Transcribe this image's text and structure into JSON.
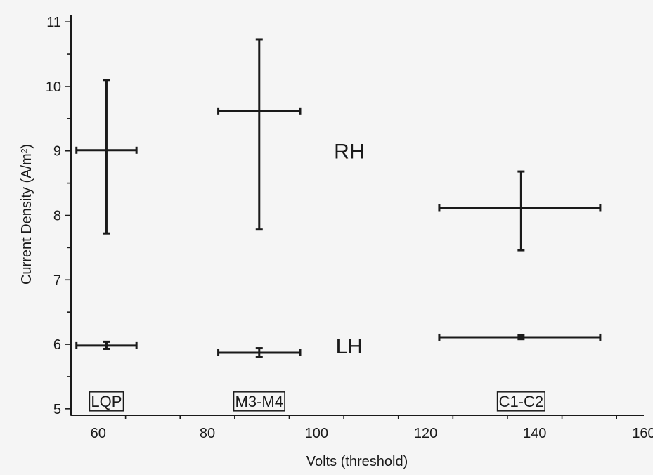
{
  "chart_data": {
    "type": "scatter",
    "xlabel": "Volts (threshold)",
    "ylabel": "Current Density (A/m²)",
    "xlim": [
      55,
      160
    ],
    "ylim": [
      4.9,
      11.1
    ],
    "xticks": [
      60,
      80,
      100,
      120,
      140,
      160
    ],
    "yticks": [
      5,
      6,
      7,
      8,
      9,
      10,
      11
    ],
    "x_minor_step": 10,
    "y_minor_step": 0.5,
    "grid": false,
    "colors": {
      "marks": "#1a1a1a",
      "background": "#f5f5f5"
    },
    "series": [
      {
        "points": [
          {
            "x": 61.5,
            "y": 9.01,
            "xerr_low": 56,
            "xerr_high": 67,
            "yerr_low": 7.72,
            "yerr_high": 10.1
          },
          {
            "x": 89.5,
            "y": 9.62,
            "xerr_low": 82,
            "xerr_high": 97,
            "yerr_low": 7.78,
            "yerr_high": 10.73
          },
          {
            "x": 137.5,
            "y": 8.12,
            "xerr_low": 122.5,
            "xerr_high": 152,
            "yerr_low": 7.46,
            "yerr_high": 8.68
          }
        ]
      },
      {
        "points": [
          {
            "x": 61.5,
            "y": 5.98,
            "xerr_low": 56,
            "xerr_high": 67,
            "yerr_low": 5.93,
            "yerr_high": 6.04
          },
          {
            "x": 89.5,
            "y": 5.87,
            "xerr_low": 82,
            "xerr_high": 97,
            "yerr_low": 5.81,
            "yerr_high": 5.94
          },
          {
            "x": 137.5,
            "y": 6.11,
            "xerr_low": 122.5,
            "xerr_high": 152,
            "yerr_low": 6.08,
            "yerr_high": 6.14
          }
        ]
      }
    ],
    "annotations": [
      {
        "text": "RH",
        "x": 106,
        "y": 9.0
      },
      {
        "text": "LH",
        "x": 106,
        "y": 5.98
      }
    ],
    "boxed_labels": [
      {
        "text": "LQP",
        "x": 61.5,
        "y": 5.12
      },
      {
        "text": "M3-M4",
        "x": 89.5,
        "y": 5.12
      },
      {
        "text": "C1-C2",
        "x": 137.5,
        "y": 5.12
      }
    ]
  }
}
